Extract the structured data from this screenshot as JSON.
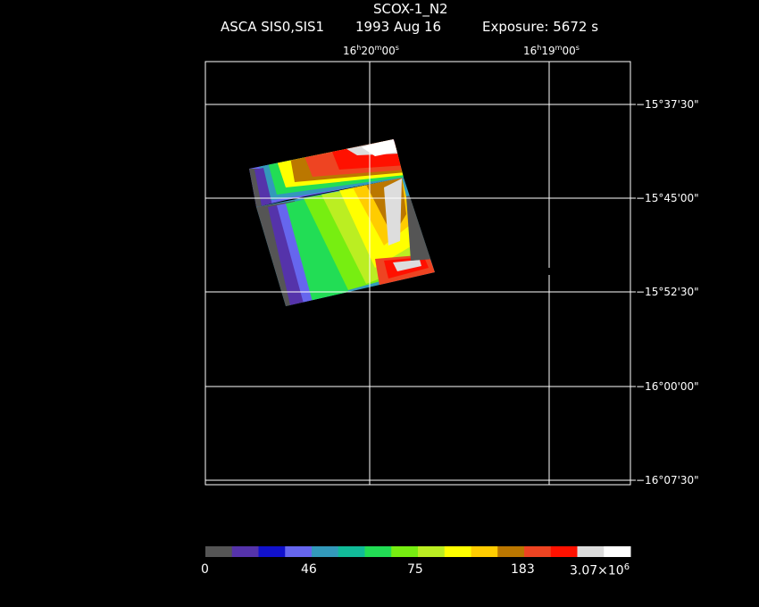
{
  "title": "SCOX-1_N2",
  "subtitle": {
    "instrument": "ASCA SIS0,SIS1",
    "date": "1993 Aug 16",
    "exposure": "Exposure: 5672 s"
  },
  "ra_ticks": [
    {
      "h": "16",
      "m": "20",
      "s": "00"
    },
    {
      "h": "16",
      "m": "19",
      "s": "00"
    }
  ],
  "dec_ticks": [
    "−15°37'30\"",
    "−15°45'00\"",
    "−15°52'30\"",
    "−16°00'00\"",
    "−16°07'30\""
  ],
  "colorbar": {
    "colors": [
      "#555555",
      "#5533aa",
      "#1111cc",
      "#6666ee",
      "#3399bb",
      "#11bb99",
      "#22dd55",
      "#77ee11",
      "#bbee22",
      "#ffff00",
      "#ffcc00",
      "#bb7700",
      "#ee4422",
      "#ff1100",
      "#dddddd",
      "#ffffff"
    ],
    "labels": [
      "0",
      "46",
      "75",
      "183",
      "3.07×10",
      "6"
    ]
  }
}
